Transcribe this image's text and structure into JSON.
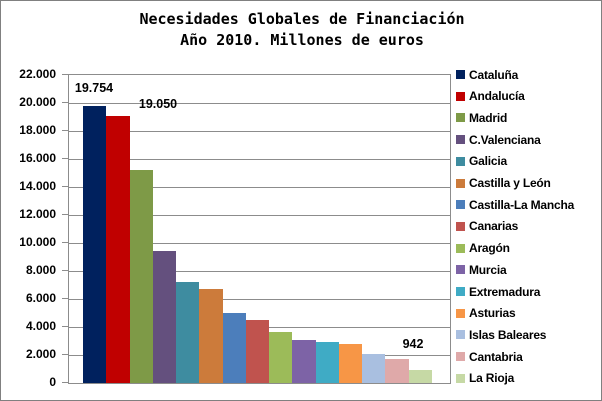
{
  "window": {
    "background": "#FFFFFF",
    "border_color": "#808080",
    "grid_color": "#8C8C8C"
  },
  "chart_data": {
    "type": "bar",
    "title_line1": "Necesidades Globales de Financiación",
    "title_line2": "Año 2010. Millones de euros",
    "xlabel": "",
    "ylabel": "",
    "ylim": [
      0,
      22000
    ],
    "ytick_step": 2000,
    "ytick_labels_bottom_to_top": [
      "0",
      "2.000",
      "4.000",
      "6.000",
      "8.000",
      "10.000",
      "12.000",
      "14.000",
      "16.000",
      "18.000",
      "20.000",
      "22.000"
    ],
    "grid": true,
    "legend_position": "right",
    "categories": [
      "Cataluña",
      "Andalucía",
      "Madrid",
      "C.Valenciana",
      "Galicia",
      "Castilla y León",
      "Castilla-La Mancha",
      "Canarias",
      "Aragón",
      "Murcia",
      "Extremadura",
      "Asturias",
      "Islas Baleares",
      "Cantabria",
      "La Rioja"
    ],
    "series": [
      {
        "name": "Cataluña",
        "value": 19754,
        "color": "#00215E",
        "data_label": "19.754"
      },
      {
        "name": "Andalucía",
        "value": 19050,
        "color": "#C00000",
        "data_label": "19.050"
      },
      {
        "name": "Madrid",
        "value": 15200,
        "color": "#7E9A47",
        "data_label": ""
      },
      {
        "name": "C.Valenciana",
        "value": 9420,
        "color": "#64507E",
        "data_label": ""
      },
      {
        "name": "Galicia",
        "value": 7230,
        "color": "#3E8CA0",
        "data_label": ""
      },
      {
        "name": "Castilla y León",
        "value": 6680,
        "color": "#CC7B3B",
        "data_label": ""
      },
      {
        "name": "Castilla-La Mancha",
        "value": 5010,
        "color": "#4C7EBB",
        "data_label": ""
      },
      {
        "name": "Canarias",
        "value": 4470,
        "color": "#C0534E",
        "data_label": ""
      },
      {
        "name": "Aragón",
        "value": 3650,
        "color": "#9CBB59",
        "data_label": ""
      },
      {
        "name": "Murcia",
        "value": 3060,
        "color": "#7D63A6",
        "data_label": ""
      },
      {
        "name": "Extremadura",
        "value": 2900,
        "color": "#3FABC5",
        "data_label": ""
      },
      {
        "name": "Asturias",
        "value": 2780,
        "color": "#F79646",
        "data_label": ""
      },
      {
        "name": "Islas Baleares",
        "value": 2100,
        "color": "#A9BFE0",
        "data_label": ""
      },
      {
        "name": "Cantabria",
        "value": 1750,
        "color": "#DFA9A9",
        "data_label": ""
      },
      {
        "name": "La Rioja",
        "value": 942,
        "color": "#C6D9A5",
        "data_label": "942"
      }
    ]
  }
}
